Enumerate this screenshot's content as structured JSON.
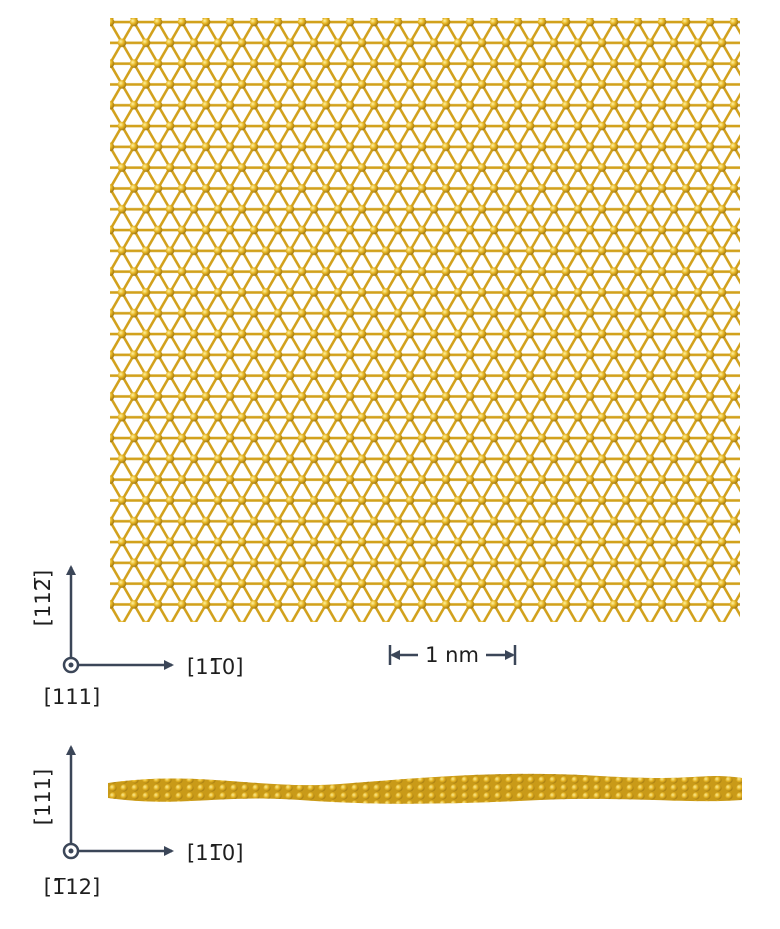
{
  "top_view": {
    "axes": {
      "vertical": "[112̅]",
      "horizontal": "[11̅0]",
      "out_of_plane": "[111]"
    },
    "scale_bar": "1 nm"
  },
  "side_view": {
    "axes": {
      "vertical": "[111]",
      "horizontal": "[11̅0]",
      "out_of_plane": "[1̅12]"
    }
  }
}
